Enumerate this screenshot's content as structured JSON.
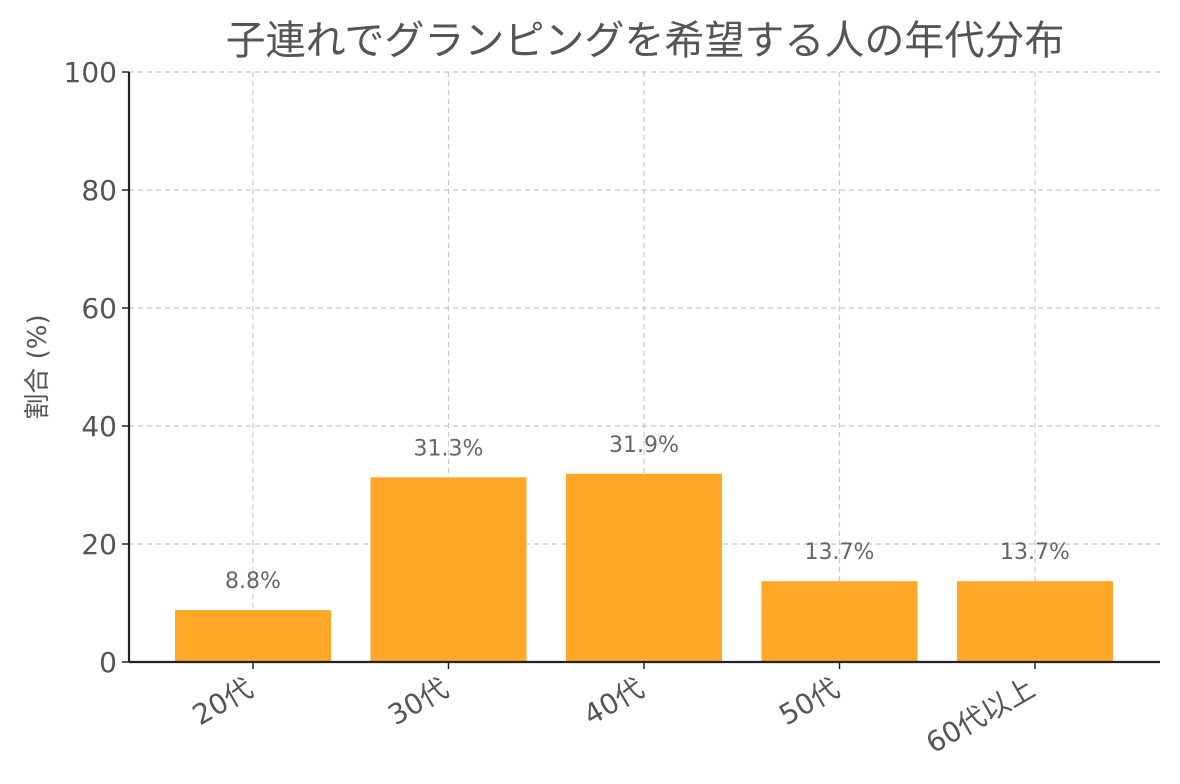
{
  "chart_data": {
    "type": "bar",
    "title": "子連れでグランピングを希望する人の年代分布",
    "xlabel": "",
    "ylabel": "割合 (%)",
    "categories": [
      "20代",
      "30代",
      "40代",
      "50代",
      "60代以上"
    ],
    "values": [
      8.8,
      31.3,
      31.9,
      13.7,
      13.7
    ],
    "data_labels": [
      "8.8%",
      "31.3%",
      "31.9%",
      "13.7%",
      "13.7%"
    ],
    "ylim": [
      0,
      100
    ],
    "yticks": [
      0,
      20,
      40,
      60,
      80,
      100
    ],
    "grid": true,
    "bar_color": "#FFA726"
  }
}
